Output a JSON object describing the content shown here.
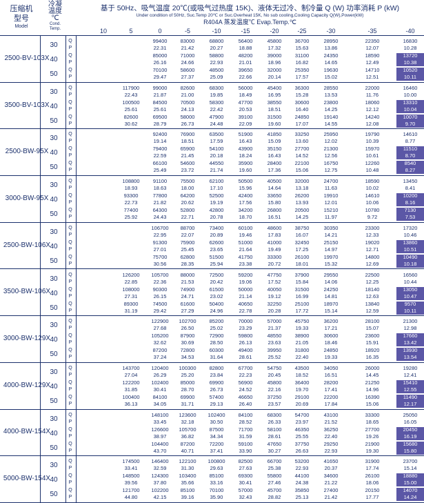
{
  "header": {
    "compressor_zh": "压缩机",
    "compressor_zh2": "型号",
    "compressor_en": "Model",
    "cond_zh": "冷凝",
    "cond_zh2": "温度",
    "cond_unit": "℃",
    "cond_en": "Cond.",
    "cond_en2": "Temp.",
    "title": "基于 50Hz、吸气温度 20℃(或吸气过热度 15K)、液体无过冷、制冷量 Q (W)  功率消耗 P (kW)",
    "subtitle": "Under condition of 50Hz, Suc.Temp 20℃ or Suc.Overheat 15K, No sub cooling,Cooling Capacity Q(W),Power(kW)",
    "refrigerant": "R404A 蒸发温度℃ Evap.Temp.℃",
    "evap_temps": [
      "10",
      "5",
      "0",
      "-5",
      "-10",
      "-15",
      "-20",
      "-25",
      "-30",
      "-35",
      "-40"
    ]
  },
  "models": [
    {
      "name": "2500-BV-103X",
      "rows": [
        {
          "cond": "30",
          "q": [
            "",
            "",
            "99400",
            "83000",
            "68800",
            "56400",
            "45800",
            "36700",
            "28950",
            "22350",
            "16830"
          ],
          "p": [
            "",
            "",
            "22.31",
            "21.42",
            "20.27",
            "18.88",
            "17.32",
            "15.63",
            "13.86",
            "12.07",
            "10.28"
          ]
        },
        {
          "cond": "40",
          "q": [
            "",
            "",
            "85000",
            "71000",
            "58800",
            "48200",
            "39000",
            "31100",
            "24350",
            "18590",
            "13720"
          ],
          "p": [
            "",
            "",
            "26.16",
            "24.66",
            "22.93",
            "21.01",
            "18.96",
            "16.82",
            "14.65",
            "12.49",
            "10.38"
          ]
        },
        {
          "cond": "50",
          "q": [
            "",
            "",
            "70100",
            "58600",
            "48500",
            "39650",
            "32000",
            "25350",
            "19630",
            "14710",
            "10520"
          ],
          "p": [
            "",
            "",
            "29.47",
            "27.37",
            "25.09",
            "22.66",
            "20.14",
            "17.57",
            "15.02",
            "12.51",
            "10.11"
          ]
        }
      ],
      "hl": [
        1,
        2
      ]
    },
    {
      "name": "3500-BV-103X",
      "rows": [
        {
          "cond": "30",
          "q": [
            "",
            "117900",
            "99000",
            "82600",
            "68300",
            "56000",
            "45400",
            "36300",
            "28550",
            "22000",
            "16460"
          ],
          "p": [
            "",
            "22.43",
            "21.87",
            "21.00",
            "19.85",
            "18.49",
            "16.95",
            "15.28",
            "13.53",
            "11.76",
            "10.00"
          ]
        },
        {
          "cond": "40",
          "q": [
            "",
            "100500",
            "84500",
            "70500",
            "58300",
            "47700",
            "38550",
            "30600",
            "23800",
            "18060",
            "13310"
          ],
          "p": [
            "",
            "25.61",
            "25.61",
            "24.13",
            "22.42",
            "20.53",
            "18.51",
            "16.40",
            "14.25",
            "12.12",
            "10.04"
          ]
        },
        {
          "cond": "50",
          "q": [
            "",
            "82600",
            "69500",
            "58000",
            "47900",
            "39100",
            "31500",
            "24850",
            "19140",
            "14240",
            "10070"
          ],
          "p": [
            "",
            "30.62",
            "28.79",
            "26.73",
            "24.48",
            "22.09",
            "19.60",
            "17.07",
            "14.55",
            "12.08",
            "9.70"
          ]
        }
      ],
      "hl": [
        1,
        2
      ]
    },
    {
      "name": "2500-BW-95X",
      "rows": [
        {
          "cond": "30",
          "q": [
            "",
            "",
            "92400",
            "76900",
            "63500",
            "51900",
            "41850",
            "33250",
            "25950",
            "19790",
            "14610"
          ],
          "p": [
            "",
            "",
            "19.14",
            "18.51",
            "17.59",
            "16.43",
            "15.09",
            "13.60",
            "12.02",
            "10.39",
            "8.77"
          ]
        },
        {
          "cond": "40",
          "q": [
            "",
            "",
            "79400",
            "65900",
            "54100",
            "43900",
            "35150",
            "27700",
            "21300",
            "15970",
            "11510"
          ],
          "p": [
            "",
            "",
            "22.59",
            "21.45",
            "20.18",
            "18.24",
            "16.43",
            "14.52",
            "12.56",
            "10.61",
            "8.70"
          ]
        },
        {
          "cond": "50",
          "q": [
            "",
            "",
            "66100",
            "54600",
            "44550",
            "35900",
            "28400",
            "22100",
            "16750",
            "12260",
            "8540"
          ],
          "p": [
            "",
            "",
            "25.49",
            "23.72",
            "21.74",
            "19.60",
            "17.36",
            "15.06",
            "12.75",
            "10.48",
            "8.27"
          ]
        }
      ],
      "hl": [
        1,
        2
      ]
    },
    {
      "name": "3000-BW-95X",
      "rows": [
        {
          "cond": "30",
          "q": [
            "",
            "108800",
            "91100",
            "75500",
            "62100",
            "50500",
            "40500",
            "32000",
            "24700",
            "18590",
            "13450"
          ],
          "p": [
            "",
            "18.93",
            "18.63",
            "18.00",
            "17.10",
            "15.96",
            "14.64",
            "13.18",
            "11.63",
            "10.02",
            "8.41"
          ]
        },
        {
          "cond": "40",
          "q": [
            "",
            "93300",
            "77800",
            "64200",
            "52500",
            "42400",
            "33650",
            "26200",
            "19910",
            "14610",
            "10200"
          ],
          "p": [
            "",
            "22.73",
            "21.82",
            "20.62",
            "19.19",
            "17.56",
            "15.80",
            "13.93",
            "12.01",
            "10.06",
            "8.16"
          ]
        },
        {
          "cond": "50",
          "q": [
            "",
            "77400",
            "64300",
            "52800",
            "42800",
            "34200",
            "26800",
            "20500",
            "15210",
            "10780",
            "7130"
          ],
          "p": [
            "",
            "25.92",
            "24.43",
            "22.71",
            "20.78",
            "18.70",
            "16.51",
            "14.25",
            "11.97",
            "9.72",
            "7.53"
          ]
        }
      ],
      "hl": [
        1,
        2
      ]
    },
    {
      "name": "2500-BW-106X",
      "rows": [
        {
          "cond": "30",
          "q": [
            "",
            "",
            "106700",
            "88700",
            "73400",
            "60100",
            "48600",
            "38750",
            "30350",
            "23300",
            "17320"
          ],
          "p": [
            "",
            "",
            "22.95",
            "22.07",
            "20.89",
            "19.46",
            "17.83",
            "16.07",
            "14.21",
            "12.33",
            "10.46"
          ]
        },
        {
          "cond": "40",
          "q": [
            "",
            "",
            "91300",
            "75900",
            "62600",
            "51000",
            "41000",
            "32450",
            "25150",
            "19020",
            "13860"
          ],
          "p": [
            "",
            "",
            "27.01",
            "25.45",
            "23.65",
            "21.64",
            "19.49",
            "17.25",
            "14.97",
            "12.71",
            "10.51"
          ]
        },
        {
          "cond": "50",
          "q": [
            "",
            "",
            "75700",
            "62800",
            "51500",
            "41750",
            "33300",
            "26100",
            "19970",
            "14800",
            "10490"
          ],
          "p": [
            "",
            "",
            "30.56",
            "28.35",
            "25.94",
            "23.38",
            "20.72",
            "18.01",
            "15.32",
            "12.69",
            "10.18"
          ]
        }
      ],
      "hl": [
        1,
        2
      ]
    },
    {
      "name": "3500-BW-106X",
      "rows": [
        {
          "cond": "30",
          "q": [
            "",
            "126200",
            "105700",
            "88000",
            "72500",
            "59200",
            "47750",
            "37900",
            "29550",
            "22500",
            "16560"
          ],
          "p": [
            "",
            "22.85",
            "22.36",
            "21.53",
            "20.42",
            "19.06",
            "17.52",
            "15.84",
            "14.06",
            "12.25",
            "10.44"
          ]
        },
        {
          "cond": "40",
          "q": [
            "",
            "108000",
            "90300",
            "74900",
            "61500",
            "50000",
            "40050",
            "31500",
            "24250",
            "18140",
            "13050"
          ],
          "p": [
            "",
            "27.31",
            "26.15",
            "24.71",
            "23.02",
            "21.14",
            "19.12",
            "16.99",
            "14.81",
            "12.63",
            "10.47"
          ]
        },
        {
          "cond": "50",
          "q": [
            "",
            "89300",
            "74500",
            "61600",
            "50400",
            "40650",
            "32250",
            "25100",
            "18970",
            "13840",
            "9570"
          ],
          "p": [
            "",
            "31.19",
            "29.42",
            "27.29",
            "24.96",
            "22.78",
            "20.28",
            "17.72",
            "15.14",
            "12.59",
            "10.11"
          ]
        }
      ],
      "hl": [
        1,
        2
      ]
    },
    {
      "name": "3000-BW-129X",
      "rows": [
        {
          "cond": "30",
          "q": [
            "",
            "",
            "122900",
            "102700",
            "85200",
            "70000",
            "57000",
            "45750",
            "36200",
            "28100",
            "21300"
          ],
          "p": [
            "",
            "",
            "27.68",
            "26.50",
            "25.02",
            "23.29",
            "21.37",
            "19.33",
            "17.21",
            "15.07",
            "12.98"
          ]
        },
        {
          "cond": "40",
          "q": [
            "",
            "",
            "105200",
            "87900",
            "72900",
            "59800",
            "48550",
            "38900",
            "30600",
            "23600",
            "17660"
          ],
          "p": [
            "",
            "",
            "32.62",
            "30.69",
            "28.50",
            "26.13",
            "23.63",
            "21.05",
            "18.46",
            "15.91",
            "13.42"
          ]
        },
        {
          "cond": "50",
          "q": [
            "",
            "",
            "87200",
            "72800",
            "60300",
            "49400",
            "39950",
            "31800",
            "24850",
            "18920",
            "13930"
          ],
          "p": [
            "",
            "",
            "37.24",
            "34.53",
            "31.64",
            "28.61",
            "25.52",
            "22.40",
            "19.33",
            "16.35",
            "13.54"
          ]
        }
      ],
      "hl": [
        1,
        2
      ]
    },
    {
      "name": "4000-BW-129X",
      "rows": [
        {
          "cond": "30",
          "q": [
            "",
            "143700",
            "120400",
            "100300",
            "82800",
            "67700",
            "54750",
            "43500",
            "34050",
            "26000",
            "19280"
          ],
          "p": [
            "",
            "27.04",
            "26.29",
            "25.20",
            "23.84",
            "22.23",
            "20.45",
            "18.52",
            "16.51",
            "14.45",
            "12.41"
          ]
        },
        {
          "cond": "40",
          "q": [
            "",
            "122200",
            "102400",
            "85000",
            "69900",
            "56900",
            "45800",
            "36400",
            "28200",
            "21250",
            "15410"
          ],
          "p": [
            "",
            "31.85",
            "30.41",
            "28.70",
            "26.73",
            "24.52",
            "22.16",
            "19.70",
            "17.41",
            "14.96",
            "12.55"
          ]
        },
        {
          "cond": "50",
          "q": [
            "",
            "100400",
            "84100",
            "69900",
            "57400",
            "46650",
            "37250",
            "29100",
            "22200",
            "16390",
            "11490"
          ],
          "p": [
            "",
            "36.13",
            "34.05",
            "31.71",
            "29.13",
            "26.40",
            "23.57",
            "20.69",
            "17.84",
            "15.06",
            "12.17"
          ]
        }
      ],
      "hl": [
        1,
        2
      ]
    },
    {
      "name": "4000-BW-154X",
      "rows": [
        {
          "cond": "30",
          "q": [
            "",
            "",
            "148100",
            "123600",
            "102400",
            "84100",
            "68300",
            "54700",
            "43100",
            "33300",
            "25050"
          ],
          "p": [
            "",
            "",
            "33.45",
            "32.18",
            "30.50",
            "28.52",
            "26.33",
            "23.97",
            "21.52",
            "18.65",
            "16.05"
          ]
        },
        {
          "cond": "40",
          "q": [
            "",
            "",
            "126600",
            "105700",
            "87500",
            "71700",
            "58100",
            "46350",
            "36250",
            "27700",
            "20450"
          ],
          "p": [
            "",
            "",
            "38.97",
            "36.82",
            "34.34",
            "31.59",
            "28.61",
            "25.55",
            "22.40",
            "19.26",
            "16.19"
          ]
        },
        {
          "cond": "50",
          "q": [
            "",
            "",
            "104400",
            "87200",
            "72200",
            "59100",
            "47650",
            "37750",
            "29250",
            "21900",
            "15680"
          ],
          "p": [
            "",
            "",
            "43.70",
            "40.71",
            "37.41",
            "33.90",
            "30.27",
            "26.63",
            "22.93",
            "19.30",
            "15.80"
          ]
        }
      ],
      "hl": [
        1,
        2
      ]
    },
    {
      "name": "5000-BW-154X",
      "rows": [
        {
          "cond": "30",
          "q": [
            "",
            "174500",
            "146400",
            "122100",
            "100800",
            "82500",
            "66700",
            "53200",
            "41650",
            "31900",
            "23700"
          ],
          "p": [
            "",
            "33.41",
            "32.59",
            "31.30",
            "29.63",
            "27.63",
            "25.38",
            "22.93",
            "20.37",
            "17.74",
            "15.14"
          ]
        },
        {
          "cond": "40",
          "q": [
            "",
            "148500",
            "124300",
            "103400",
            "85100",
            "69300",
            "55800",
            "44100",
            "34600",
            "26100",
            "18880"
          ],
          "p": [
            "",
            "39.56",
            "37.80",
            "35.66",
            "33.16",
            "30.41",
            "27.46",
            "24.38",
            "21.22",
            "18.06",
            "15.00"
          ]
        },
        {
          "cond": "50",
          "q": [
            "",
            "121700",
            "102200",
            "85100",
            "70100",
            "57000",
            "45700",
            "35850",
            "27400",
            "20150",
            "14070"
          ],
          "p": [
            "",
            "44.80",
            "42.15",
            "39.16",
            "35.90",
            "32.43",
            "28.82",
            "25.13",
            "21.42",
            "17.77",
            "14.24"
          ]
        }
      ],
      "hl": [
        1,
        2
      ]
    }
  ]
}
